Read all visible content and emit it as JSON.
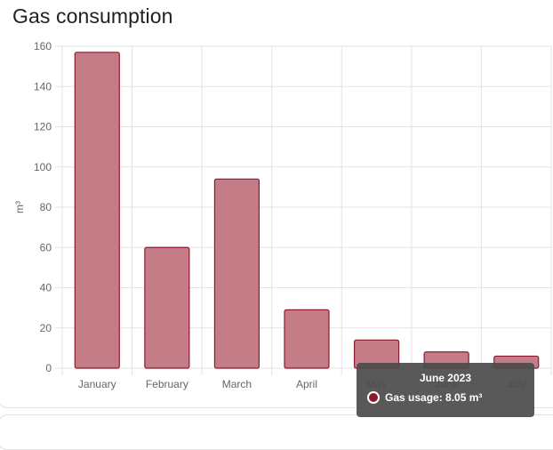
{
  "card": {
    "title": "Gas consumption"
  },
  "chart_data": {
    "type": "bar",
    "title": "Gas consumption",
    "xlabel": "",
    "ylabel": "m³",
    "categories": [
      "January",
      "February",
      "March",
      "April",
      "May",
      "June",
      "July"
    ],
    "series": [
      {
        "name": "Gas usage",
        "values": [
          157,
          60,
          94,
          29,
          14,
          8.05,
          6
        ]
      }
    ],
    "ylim": [
      0,
      160
    ],
    "yticks": [
      0,
      20,
      40,
      60,
      80,
      100,
      120,
      140,
      160
    ],
    "grid": true,
    "colors": {
      "bar_fill": "#c47d87",
      "bar_stroke": "#8b1a30",
      "grid": "#e3e3e3"
    }
  },
  "tooltip": {
    "title": "June 2023",
    "label": "Gas usage: 8.05 m³",
    "swatch_color": "#8b1a30"
  }
}
